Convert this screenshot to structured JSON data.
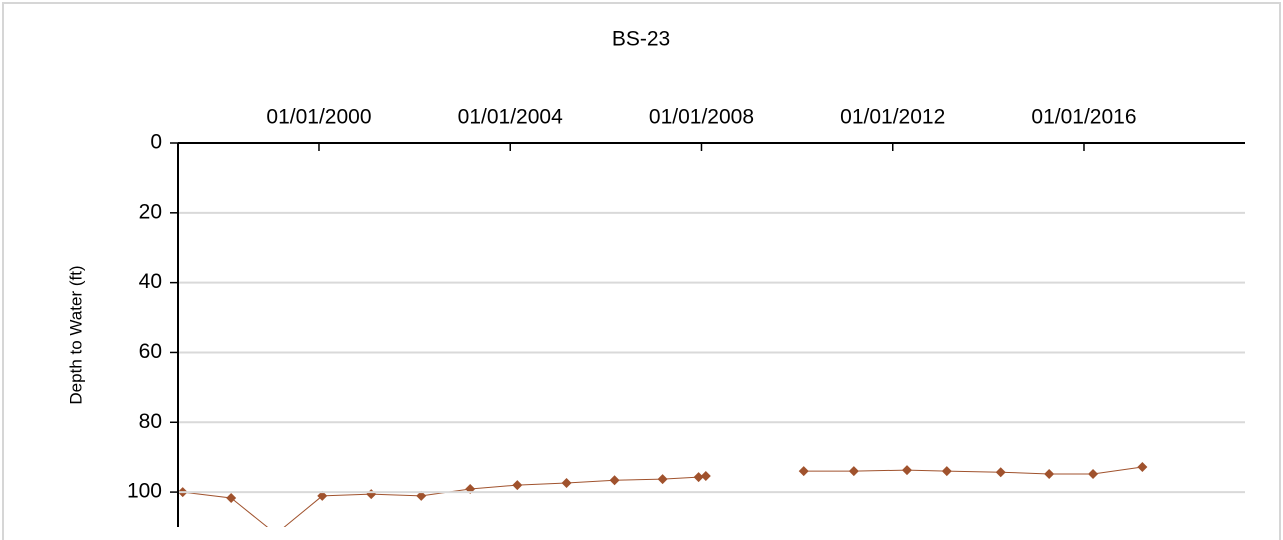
{
  "chart_data": {
    "type": "line",
    "title": "BS-23",
    "y_label": "Depth to Water (ft)",
    "ylim": [
      0,
      110
    ],
    "yticks": [
      0,
      20,
      40,
      60,
      80,
      100
    ],
    "y_inverted": true,
    "xlim": [
      "1997-01-19",
      "2019-05-15"
    ],
    "xticks": [
      {
        "value": "2000-01-01",
        "label": "01/01/2000"
      },
      {
        "value": "2004-01-01",
        "label": "01/01/2004"
      },
      {
        "value": "2008-01-01",
        "label": "01/01/2008"
      },
      {
        "value": "2012-01-01",
        "label": "01/01/2012"
      },
      {
        "value": "2016-01-01",
        "label": "01/01/2016"
      }
    ],
    "x_axis_position": "top",
    "grid": true,
    "series": [
      {
        "color": "#a0522d",
        "x": [
          "1997-02-24",
          "1998-03-01",
          "1999-02-06",
          "2000-01-26",
          "2001-02-03",
          "2002-02-20",
          "2003-03-01",
          "2004-02-24",
          "2005-03-06",
          "2006-03-08",
          "2007-03-10",
          "2007-12-10",
          "2008-02-03"
        ],
        "values": [
          100.0,
          101.7,
          112,
          101.1,
          100.6,
          101.1,
          99.1,
          98.0,
          97.4,
          96.6,
          96.3,
          95.7,
          95.4
        ]
      },
      {
        "color": "#a0522d",
        "x": [
          "2010-02-20",
          "2011-03-10",
          "2012-04-19",
          "2013-02-17",
          "2014-04-05",
          "2015-04-10",
          "2016-03-10",
          "2017-03-22"
        ],
        "values": [
          94.0,
          94.0,
          93.7,
          94.0,
          94.3,
          94.8,
          94.8,
          92.8
        ]
      }
    ]
  }
}
